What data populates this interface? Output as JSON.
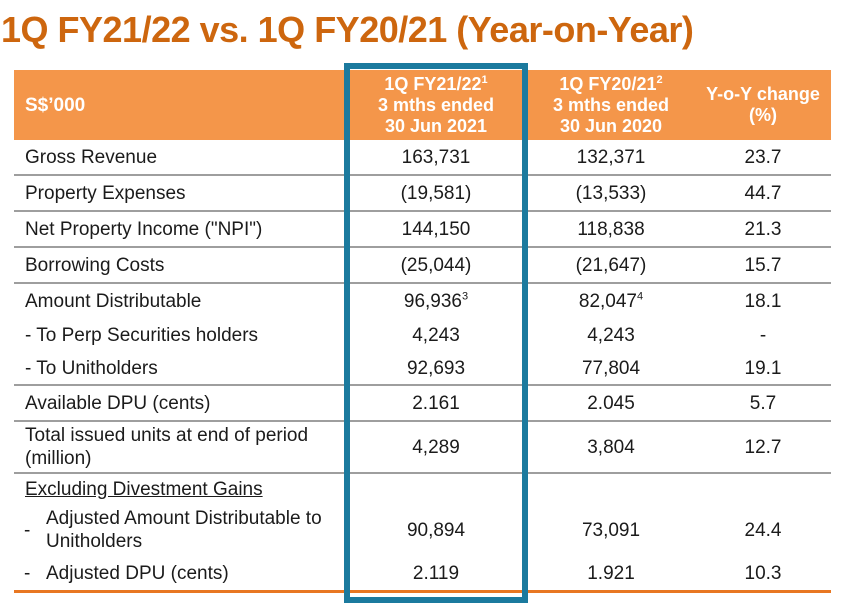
{
  "title": "1Q FY21/22 vs. 1Q FY20/21 (Year-on-Year)",
  "colors": {
    "title_orange": "#cd660e",
    "header_orange": "#f4964a",
    "header_text": "#ffffff",
    "highlight_teal": "#1b7a9e",
    "divider_gray": "#9e9e9e",
    "bottom_rule_orange": "#e87722",
    "body_text": "#1b1b1b"
  },
  "table": {
    "columns": [
      {
        "key": "label",
        "header_lines": [
          "S$’000"
        ],
        "align": "left"
      },
      {
        "key": "fy2122",
        "header_lines": [
          "1Q FY21/22",
          "3 mths ended",
          "30 Jun 2021"
        ],
        "header_sup": "1",
        "align": "center",
        "highlighted": true
      },
      {
        "key": "fy2021",
        "header_lines": [
          "1Q FY20/21",
          "3 mths ended",
          "30 Jun 2020"
        ],
        "header_sup": "2",
        "align": "center",
        "highlighted": false
      },
      {
        "key": "yoy",
        "header_lines": [
          "Y-o-Y change",
          "(%)"
        ],
        "align": "center",
        "highlighted": false
      }
    ],
    "rows": [
      {
        "label_lines": [
          "Gross Revenue"
        ],
        "fy2122": "163,731",
        "fy2021": "132,371",
        "yoy": "23.7",
        "divider": true
      },
      {
        "label_lines": [
          "Property Expenses"
        ],
        "fy2122": "(19,581)",
        "fy2021": "(13,533)",
        "yoy": "44.7",
        "divider": true
      },
      {
        "label_lines": [
          "Net Property Income (\"NPI\")"
        ],
        "fy2122": "144,150",
        "fy2021": "118,838",
        "yoy": "21.3",
        "divider": true
      },
      {
        "label_lines": [
          "Borrowing Costs"
        ],
        "fy2122": "(25,044)",
        "fy2021": "(21,647)",
        "yoy": "15.7",
        "divider": true
      },
      {
        "label_lines": [
          "Amount Distributable"
        ],
        "fy2122": "96,936",
        "fy2122_sup": "3",
        "fy2021": "82,047",
        "fy2021_sup": "4",
        "yoy": "18.1",
        "divider": false
      },
      {
        "label_lines": [
          "- To Perp Securities holders"
        ],
        "fy2122": "4,243",
        "fy2021": "4,243",
        "yoy": "-",
        "divider": false
      },
      {
        "label_lines": [
          "- To Unitholders"
        ],
        "fy2122": "92,693",
        "fy2021": "77,804",
        "yoy": "19.1",
        "divider": true
      },
      {
        "label_lines": [
          "Available DPU (cents)"
        ],
        "fy2122": "2.161",
        "fy2021": "2.045",
        "yoy": "5.7",
        "divider": true
      },
      {
        "label_lines": [
          "Total issued units at end of period",
          "(million)"
        ],
        "fy2122": "4,289",
        "fy2021": "3,804",
        "yoy": "12.7",
        "divider": true
      },
      {
        "label_lines": [
          "Excluding Divestment Gains"
        ],
        "underline": true,
        "fy2122": "",
        "fy2021": "",
        "yoy": "",
        "divider": false
      },
      {
        "label_lines": [
          "Adjusted Amount Distributable to",
          "Unitholders"
        ],
        "hang_dash": true,
        "fy2122": "90,894",
        "fy2021": "73,091",
        "yoy": "24.4",
        "divider": false
      },
      {
        "label_lines": [
          "Adjusted DPU (cents)"
        ],
        "hang_dash": true,
        "fy2122": "2.119",
        "fy2021": "1.921",
        "yoy": "10.3",
        "divider": false
      }
    ]
  }
}
